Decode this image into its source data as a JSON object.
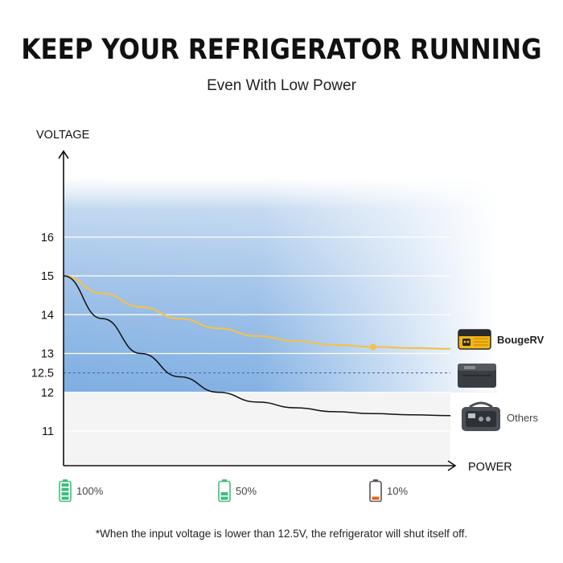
{
  "header": {
    "title": "KEEP YOUR REFRIGERATOR RUNNING",
    "subtitle": "Even With Low Power"
  },
  "chart_data": {
    "type": "line",
    "ylabel": "VOLTAGE",
    "xlabel": "POWER",
    "yticks": [
      11,
      12,
      12.5,
      13,
      14,
      15,
      16
    ],
    "ylim": [
      10,
      19.5
    ],
    "xlim": [
      0,
      100
    ],
    "threshold": 12.5,
    "series": [
      {
        "name": "BougeRV",
        "color": "#f2c14e",
        "x": [
          0,
          10,
          20,
          30,
          40,
          50,
          60,
          70,
          80,
          90,
          100
        ],
        "y": [
          15.0,
          14.55,
          14.2,
          13.9,
          13.65,
          13.45,
          13.32,
          13.22,
          13.17,
          13.14,
          13.12
        ]
      },
      {
        "name": "Others",
        "color": "#111111",
        "x": [
          0,
          10,
          20,
          30,
          40,
          50,
          60,
          70,
          80,
          90,
          100
        ],
        "y": [
          15.0,
          13.9,
          13.0,
          12.4,
          12.0,
          11.75,
          11.6,
          11.5,
          11.45,
          11.42,
          11.4
        ]
      }
    ],
    "marker": {
      "series": "BougeRV",
      "x": 80
    },
    "battery_levels": [
      "100%",
      "50%",
      "10%"
    ]
  },
  "products": {
    "brand": "BougeRV",
    "others": "Others"
  },
  "footnote": "*When the input voltage is lower than 12.5V, the refrigerator will shut itself off.",
  "colors": {
    "band_top": "#a9c8ea",
    "band_threshold": "#6a9fd8",
    "line_brand": "#f2c14e",
    "line_others": "#111111",
    "battery_green": "#3dbd7d",
    "battery_low": "#e8631a"
  }
}
